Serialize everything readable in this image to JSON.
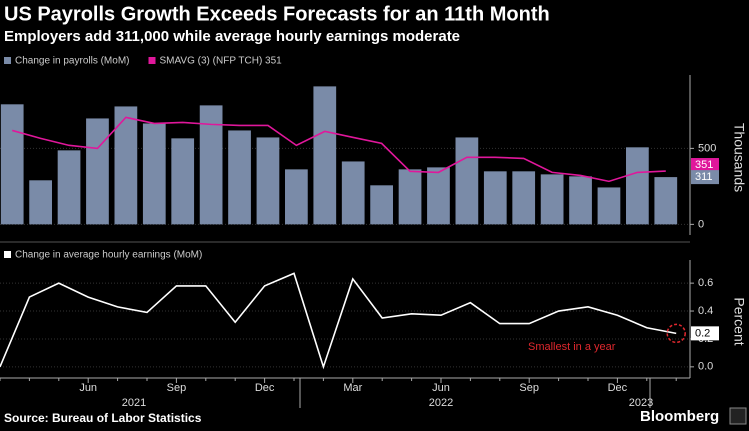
{
  "title": "US Payrolls Growth Exceeds Forecasts for an 11th Month",
  "subtitle": "Employers add 311,000 while average hourly earnings moderate",
  "source": "Source: Bureau of Labor Statistics",
  "brand": "Bloomberg",
  "years": [
    "2021",
    "2022",
    "2023"
  ],
  "chart_data": [
    {
      "type": "bar",
      "y_label": "Thousands",
      "categories": [
        null,
        null,
        null,
        "Jun",
        null,
        null,
        "Sep",
        null,
        null,
        "Dec",
        null,
        null,
        "Mar",
        null,
        null,
        "Jun",
        null,
        null,
        "Sep",
        null,
        null,
        "Dec",
        null,
        null
      ],
      "ylim": [
        -70,
        950
      ],
      "yticks": [
        0,
        500
      ],
      "series": [
        {
          "name": "Change in payrolls (MoM)",
          "type": "bar",
          "color": "#7a8ba8",
          "values": [
            790,
            290,
            487,
            697,
            776,
            664,
            566,
            783,
            618,
            572,
            362,
            908,
            414,
            257,
            362,
            375,
            572,
            349,
            349,
            329,
            316,
            243,
            507,
            311
          ],
          "value_labels": [
            null,
            null,
            null,
            null,
            null,
            null,
            null,
            null,
            null,
            null,
            null,
            null,
            null,
            null,
            null,
            null,
            null,
            null,
            null,
            null,
            null,
            null,
            null,
            "311"
          ]
        },
        {
          "name": "SMAVG (3) (NFP TCH) 351",
          "type": "line",
          "color": "#e0179b",
          "values": [
            618,
            566,
            520,
            500,
            704,
            664,
            671,
            658,
            651,
            651,
            520,
            612,
            572,
            533,
            349,
            342,
            441,
            441,
            434,
            342,
            322,
            283,
            342,
            351
          ],
          "value_labels": [
            null,
            null,
            null,
            null,
            null,
            null,
            null,
            null,
            null,
            null,
            null,
            null,
            null,
            null,
            null,
            null,
            null,
            null,
            null,
            null,
            null,
            null,
            null,
            "351"
          ]
        }
      ]
    },
    {
      "type": "line",
      "y_label": "Percent",
      "ylim": [
        -0.08,
        0.73
      ],
      "yticks": [
        {
          "value": 0,
          "label": "0.0"
        },
        0.2,
        0.4,
        0.6
      ],
      "annotation": "Smallest in a year",
      "series": [
        {
          "name": "Change in average hourly earnings (MoM)",
          "type": "line",
          "color": "#ffffff",
          "values": [
            0.0,
            0.5,
            0.6,
            0.5,
            0.43,
            0.39,
            0.58,
            0.58,
            0.32,
            0.58,
            0.67,
            0.0,
            0.63,
            0.35,
            0.38,
            0.37,
            0.46,
            0.31,
            0.31,
            0.4,
            0.43,
            0.37,
            0.28,
            0.24
          ],
          "value_labels": [
            null,
            null,
            null,
            null,
            null,
            null,
            null,
            null,
            null,
            null,
            null,
            null,
            null,
            null,
            null,
            null,
            null,
            null,
            null,
            null,
            null,
            null,
            null,
            "0.2"
          ]
        }
      ]
    }
  ]
}
